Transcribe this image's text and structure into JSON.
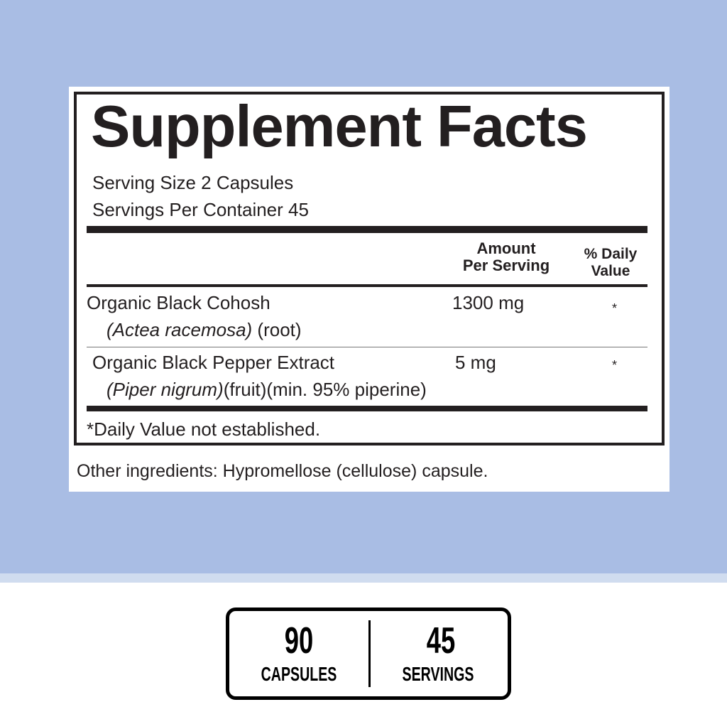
{
  "colors": {
    "background": "#a9bde4",
    "band": "#d0dcef",
    "text": "#231f20"
  },
  "facts": {
    "title": "Supplement Facts",
    "serving_size": "Serving Size 2 Capsules",
    "servings_per_container": "Servings Per Container 45",
    "header_amount_1": "Amount",
    "header_amount_2": "Per Serving",
    "header_dv_1": "% Daily",
    "header_dv_2": "Value",
    "rows": [
      {
        "name": "Organic Black Cohosh",
        "detail_italic": "(Actea racemosa)",
        "detail": " (root)",
        "amount": "1300 mg",
        "dv": "*"
      },
      {
        "name": "Organic Black Pepper Extract",
        "detail_italic": "(Piper nigrum)",
        "detail": "(fruit)(min. 95% piperine)",
        "amount": "5 mg",
        "dv": "*"
      }
    ],
    "footnote": "*Daily Value not established.",
    "other_ingredients": "Other ingredients: Hypromellose (cellulose) capsule."
  },
  "badge": {
    "capsules_count": "90",
    "capsules_label": "CAPSULES",
    "servings_count": "45",
    "servings_label": "SERVINGS"
  }
}
